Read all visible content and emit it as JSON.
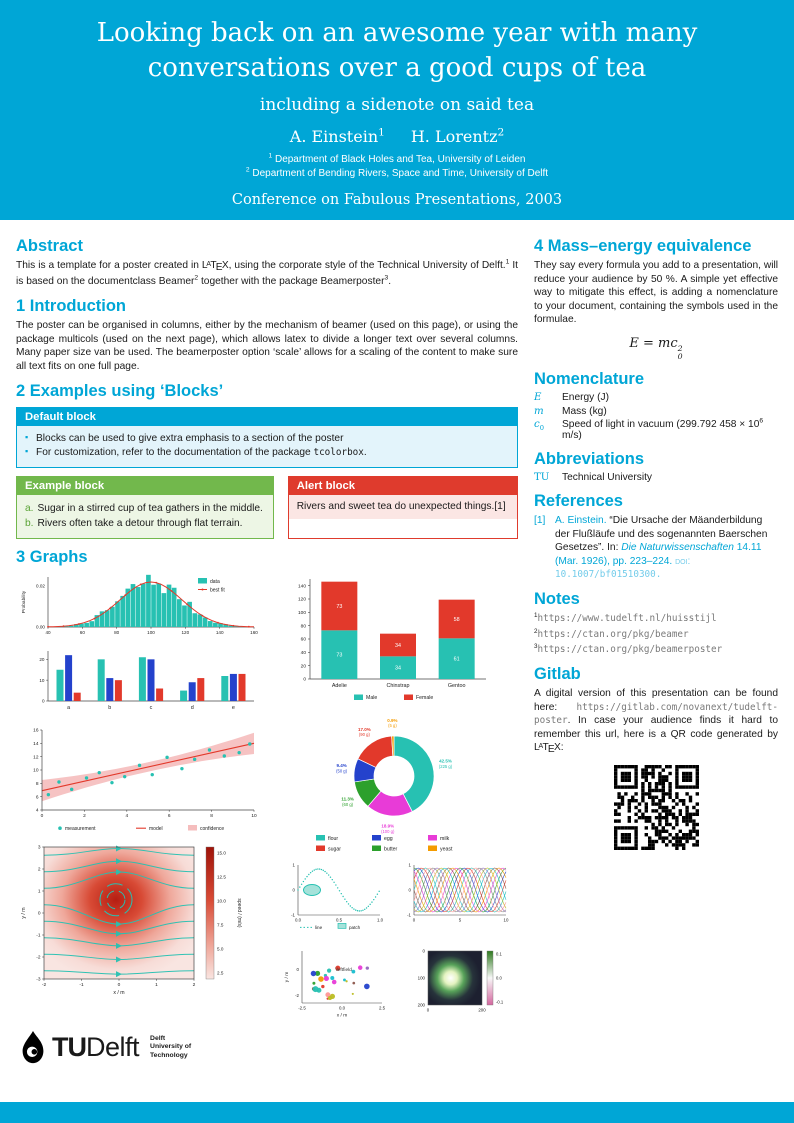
{
  "theme": {
    "primary": "#00A6D6",
    "green": "#72B84C",
    "alert_red": "#DF3B2D",
    "chart": {
      "teal": "#27C1B2",
      "red": "#E2392B",
      "blue": "#2442CC",
      "green": "#2CA02C",
      "magenta": "#E83BD7",
      "orange": "#F49B00",
      "pink_band": "#F5BDBD"
    }
  },
  "header": {
    "title": "Looking back on an awesome year with many conversations over a good cups of tea",
    "subtitle": "including a sidenote on said tea",
    "authors_rich": [
      "A. Einstein",
      {
        "s": "1",
        "sup": true
      },
      {
        "s": "",
        "c": "gap"
      },
      "H. Lorentz",
      {
        "s": "2",
        "sup": true
      }
    ],
    "affiliations": [
      [
        {
          "s": "1",
          "sup": true
        },
        " Department of Black Holes and Tea, University of Leiden"
      ],
      [
        {
          "s": "2",
          "sup": true
        },
        " Department of Bending Rivers, Space and Time, University of Delft"
      ]
    ],
    "conference": "Conference on Fabulous Presentations, 2003"
  },
  "left": {
    "abstract": {
      "heading": "Abstract",
      "body": [
        "This is a template for a poster created in ",
        {
          "latex": true
        },
        ", using the corporate style of the Technical University of Delft.",
        {
          "s": "1",
          "sup": true
        },
        " It is based on the documentclass Beamer",
        {
          "s": "2",
          "sup": true
        },
        " together with the package Beamerposter",
        {
          "s": "3",
          "sup": true
        },
        "."
      ]
    },
    "introduction": {
      "heading": "1 Introduction",
      "body": [
        "The poster can be organised in columns, either by the mechanism of beamer (used on this page), or using the package multicols (used on the next page), which allows latex to divide a longer text over several columns. Many paper size van be used. The beamerposter option ‘scale’ allows for a scaling of the content to make sure all text fits on one full page."
      ]
    },
    "blocks_section": {
      "heading": "2 Examples using ‘Blocks’",
      "default_block": {
        "title": "Default block",
        "items": [
          [
            "Blocks can be used to give extra emphasis to a section of the poster"
          ],
          [
            "For customization, refer to the documentation of the package ",
            {
              "s": "tcolorbox",
              "c": "mono"
            },
            "."
          ]
        ]
      },
      "example_block": {
        "title": "Example block",
        "items": [
          {
            "label": "a.",
            "text": "Sugar in a stirred cup of tea gathers in the middle."
          },
          {
            "label": "b.",
            "text": "Rivers often take a detour through flat terrain."
          }
        ]
      },
      "alert_block": {
        "title": "Alert block",
        "text": "Rivers and sweet tea do unexpected things.[1]"
      }
    },
    "graphs_heading": "3 Graphs"
  },
  "right": {
    "mass_energy": {
      "heading": "4 Mass–energy equivalence",
      "body": "They say every formula you add to a presentation, will reduce your audience by 50 %. A simple yet effective way to mitigate this effect, is adding a nomenclature to your document, containing the symbols used in the formulae.",
      "formula": {
        "lhs": "E",
        "rel": "=",
        "rhs": "mc",
        "sup": "2",
        "sub": "0"
      }
    },
    "nomenclature": {
      "heading": "Nomenclature",
      "rows": [
        {
          "sym": [
            {
              "s": "E",
              "c": "it cyan"
            }
          ],
          "desc": [
            "Energy (J)"
          ]
        },
        {
          "sym": [
            {
              "s": "m",
              "c": "it cyan"
            }
          ],
          "desc": [
            "Mass (kg)"
          ]
        },
        {
          "sym": [
            {
              "s": "c",
              "c": "it cyan"
            },
            {
              "s": "0",
              "sub": true,
              "c": "cyan"
            }
          ],
          "desc": [
            "Speed of light in vacuum (299.792 458 × 10",
            {
              "s": "6",
              "sup": true
            },
            " m/s)"
          ]
        }
      ]
    },
    "abbreviations": {
      "heading": "Abbreviations",
      "rows": [
        {
          "abbr": "TU",
          "desc": "Technical University"
        }
      ]
    },
    "references": {
      "heading": "References",
      "items": [
        {
          "num": "[1]",
          "body": [
            {
              "s": "A. Einstein.",
              "c": "cyan"
            },
            " “Die Ursache der Mäanderbildung der Flußläufe und des sogenannten Baerschen Gesetzes”. In: ",
            {
              "s": "Die Naturwissenschaften",
              "c": "cyan it"
            },
            {
              "s": " 14.11 (Mar. 1926), pp. 223–224. ",
              "c": "cyan"
            },
            {
              "s": "doi:",
              "c": "sc lightcyan"
            },
            " ",
            {
              "s": "10.1007/bf01510300.",
              "c": "mono lightcyan url"
            }
          ]
        }
      ]
    },
    "notes": {
      "heading": "Notes",
      "items": [
        [
          {
            "s": "1",
            "sup": true
          },
          {
            "s": "https://www.tudelft.nl/huisstijl",
            "c": "mono dim url"
          }
        ],
        [
          {
            "s": "2",
            "sup": true
          },
          {
            "s": "https://ctan.org/pkg/beamer",
            "c": "mono dim url"
          }
        ],
        [
          {
            "s": "3",
            "sup": true
          },
          {
            "s": "https://ctan.org/pkg/beamerposter",
            "c": "mono dim url"
          }
        ]
      ]
    },
    "gitlab": {
      "heading": "Gitlab",
      "body": [
        "A digital version of this presentation can be found here: ",
        {
          "s": "https://gitlab.com/novanext/tudelft-poster",
          "c": "mono dim url"
        },
        ". In case your audience finds it hard to remember this url, here is a QR code generated by ",
        {
          "latex": true
        },
        ":"
      ]
    }
  },
  "charts": {
    "histfit": {
      "type": "histogram",
      "ylabel": "Probability",
      "yticks": [
        "0.02",
        "0.00"
      ],
      "xticks": [
        "40",
        "60",
        "80",
        "100",
        "120",
        "140",
        "160"
      ],
      "xlim": [
        40,
        160
      ],
      "mean": 100,
      "sd": 18,
      "peak": 0.022,
      "legend": [
        {
          "label": "data",
          "kind": "patch",
          "color": "teal"
        },
        {
          "label": "best fit",
          "kind": "line",
          "color": "red"
        }
      ]
    },
    "groupbar": {
      "type": "bar",
      "categories": [
        "a",
        "b",
        "c",
        "d",
        "e"
      ],
      "yticks": [
        "0",
        "10",
        "20"
      ],
      "ymax": 24,
      "series": [
        {
          "color": "teal",
          "values": [
            15,
            20,
            21,
            5,
            12
          ]
        },
        {
          "color": "blue",
          "values": [
            22,
            11,
            20,
            9,
            13
          ]
        },
        {
          "color": "red",
          "values": [
            4,
            10,
            6,
            11,
            13
          ]
        }
      ]
    },
    "penguin": {
      "type": "stacked-bar",
      "categories": [
        "Adelie",
        "Chinstrap",
        "Gentoo"
      ],
      "yticks": [
        "0",
        "20",
        "40",
        "60",
        "80",
        "100",
        "120",
        "140"
      ],
      "ymax": 150,
      "series": [
        {
          "name": "Male",
          "color": "teal",
          "values": [
            73,
            34,
            61
          ]
        },
        {
          "name": "Female",
          "color": "red",
          "values": [
            73,
            34,
            58
          ]
        }
      ]
    },
    "regression": {
      "type": "scatter+line",
      "xticks": [
        "0",
        "2",
        "4",
        "6",
        "8",
        "10"
      ],
      "yticks": [
        "4",
        "6",
        "8",
        "10",
        "12",
        "14",
        "16"
      ],
      "xlim": [
        0,
        10
      ],
      "ylim": [
        4,
        16
      ],
      "points": [
        [
          0.3,
          6.3
        ],
        [
          0.8,
          8.2
        ],
        [
          1.4,
          7.1
        ],
        [
          2.1,
          8.8
        ],
        [
          2.7,
          9.6
        ],
        [
          3.3,
          8.1
        ],
        [
          3.9,
          9.0
        ],
        [
          4.6,
          10.7
        ],
        [
          5.2,
          9.3
        ],
        [
          5.9,
          11.9
        ],
        [
          6.6,
          10.2
        ],
        [
          7.2,
          11.6
        ],
        [
          7.9,
          13.0
        ],
        [
          8.6,
          12.1
        ],
        [
          9.3,
          12.6
        ],
        [
          9.8,
          13.9
        ]
      ],
      "line": [
        [
          0,
          6.9
        ],
        [
          10,
          14.0
        ]
      ],
      "band": [
        0.7,
        1.6
      ],
      "legend": [
        {
          "label": "measurement",
          "kind": "dot",
          "color": "teal"
        },
        {
          "label": "model",
          "kind": "line",
          "color": "red"
        },
        {
          "label": "confidence",
          "kind": "patch",
          "color": "pink_band"
        }
      ]
    },
    "donut": {
      "type": "donut",
      "slices": [
        {
          "label": "flour",
          "value": 225,
          "pct": "42.5%",
          "mass": "(225 g)",
          "color": "teal"
        },
        {
          "label": "sugar",
          "value": 90,
          "pct": "17.0%",
          "mass": "(90 g)",
          "color": "red"
        },
        {
          "label": "egg",
          "value": 50,
          "pct": "9.4%",
          "mass": "(50 g)",
          "color": "blue"
        },
        {
          "label": "butter",
          "value": 60,
          "pct": "11.3%",
          "mass": "(60 g)",
          "color": "green"
        },
        {
          "label": "milk",
          "value": 100,
          "pct": "18.9%",
          "mass": "(100 g)",
          "color": "magenta"
        },
        {
          "label": "yeast",
          "value": 5,
          "pct": "0.9%",
          "mass": "(5 g)",
          "color": "orange"
        }
      ],
      "clockwise_order": [
        0,
        4,
        3,
        2,
        1,
        5
      ],
      "legend_grid": [
        [
          "flour",
          "egg",
          "milk"
        ],
        [
          "sugar",
          "butter",
          "yeast"
        ]
      ]
    },
    "stream": {
      "type": "streamplot",
      "xlabel": "x / m",
      "ylabel": "y / m",
      "xticks": [
        "-2",
        "-1",
        "0",
        "1",
        "2"
      ],
      "yticks": [
        "3",
        "2",
        "1",
        "0",
        "-1",
        "-2",
        "-3"
      ],
      "colorbar": {
        "label": "speed / (m/s)",
        "ticks": [
          "15.0",
          "12.5",
          "10.0",
          "7.5",
          "5.0",
          "2.5"
        ]
      }
    },
    "smalls": {
      "line_patch": {
        "xticks": [
          "0.0",
          "0.5",
          "1.0"
        ],
        "yticks": [
          "1",
          "0",
          "-1"
        ],
        "legend": [
          {
            "label": "line"
          },
          {
            "label": "patch"
          }
        ]
      },
      "phase_lines": {
        "xticks": [
          "0",
          "5",
          "10"
        ],
        "yticks": [
          "1",
          "0",
          "-1"
        ],
        "n_lines": 12
      },
      "scatter_field": {
        "xlabel": "x / m",
        "ylabel": "y / m",
        "xticks": [
          "-2.5",
          "0.0",
          "2.5"
        ],
        "yticks": [
          "0",
          "-2"
        ],
        "annotation": "\\leftfield"
      },
      "image_plot": {
        "xticks": [
          "0",
          "200"
        ],
        "yticks": [
          "0",
          "100",
          "200"
        ],
        "colorbar_ticks": [
          "0.1",
          "0.0",
          "-0.1"
        ]
      }
    }
  },
  "logo": {
    "tu": "TU",
    "delft": "Delft",
    "caption_lines": [
      "Delft",
      "University of",
      "Technology"
    ]
  }
}
